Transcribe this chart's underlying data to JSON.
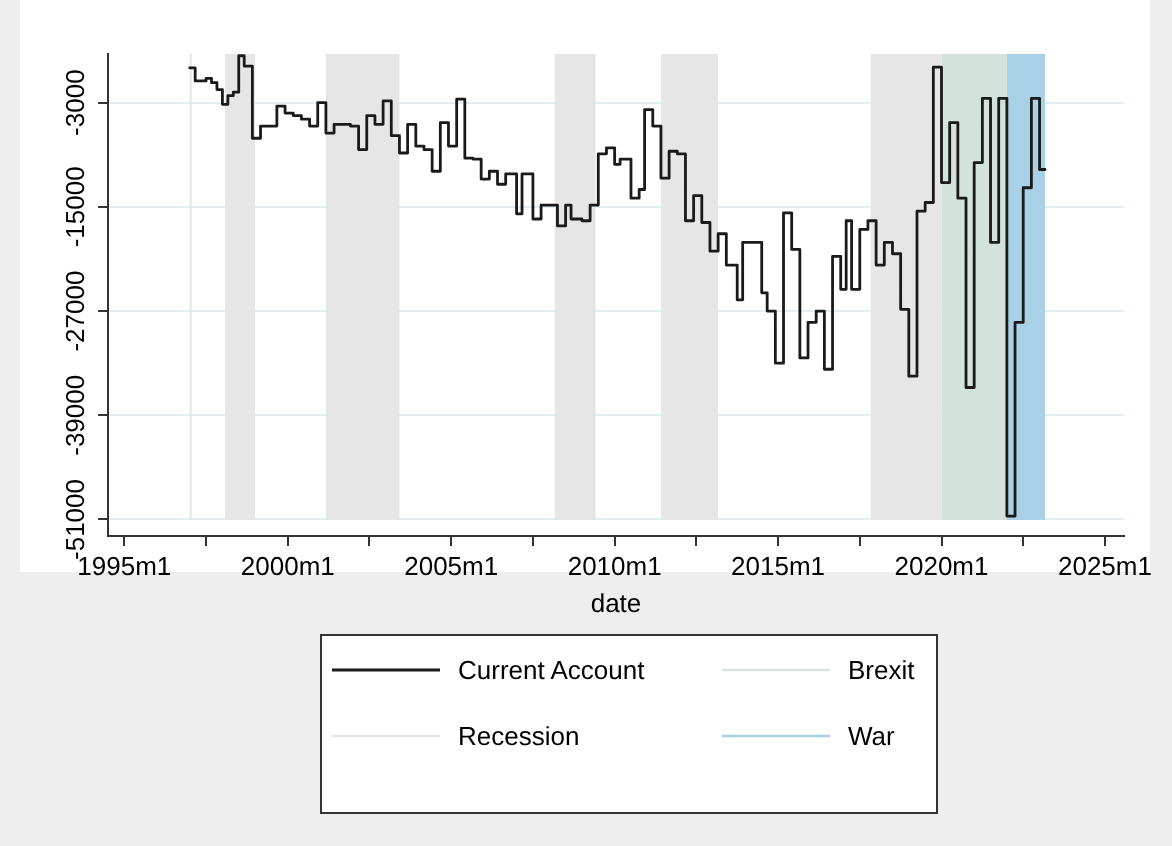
{
  "chart_data": {
    "type": "step",
    "xlabel": "date",
    "x": [
      "1997-01",
      "1997-03",
      "1997-07",
      "1997-09",
      "1997-11",
      "1998-01",
      "1998-03",
      "1998-05",
      "1998-07",
      "1998-09",
      "1998-12",
      "1999-03",
      "1999-09",
      "1999-12",
      "2000-03",
      "2000-06",
      "2000-09",
      "2000-12",
      "2001-03",
      "2001-06",
      "2001-12",
      "2002-03",
      "2002-06",
      "2002-09",
      "2002-12",
      "2003-03",
      "2003-06",
      "2003-09",
      "2003-12",
      "2004-03",
      "2004-06",
      "2004-09",
      "2004-12",
      "2005-03",
      "2005-06",
      "2005-09",
      "2005-12",
      "2006-03",
      "2006-06",
      "2006-09",
      "2007-01",
      "2007-03",
      "2007-07",
      "2007-10",
      "2008-04",
      "2008-07",
      "2008-09",
      "2009-01",
      "2009-04",
      "2009-07",
      "2009-10",
      "2010-01",
      "2010-03",
      "2010-07",
      "2010-10",
      "2010-12",
      "2011-03",
      "2011-06",
      "2011-09",
      "2011-12",
      "2012-03",
      "2012-06",
      "2012-09",
      "2012-12",
      "2013-03",
      "2013-06",
      "2013-10",
      "2013-12",
      "2014-07",
      "2014-09",
      "2014-12",
      "2015-03",
      "2015-06",
      "2015-09",
      "2015-12",
      "2016-03",
      "2016-06",
      "2016-09",
      "2016-12",
      "2017-02",
      "2017-04",
      "2017-07",
      "2017-10",
      "2018-01",
      "2018-04",
      "2018-07",
      "2018-10",
      "2019-01",
      "2019-04",
      "2019-07",
      "2019-10",
      "2020-01",
      "2020-04",
      "2020-07",
      "2020-10",
      "2021-01",
      "2021-04",
      "2021-07",
      "2021-10",
      "2022-01",
      "2022-04",
      "2022-07",
      "2022-10",
      "2023-01",
      "2023-03"
    ],
    "series": [
      {
        "name": "Current Account",
        "color": "#1a1a1a",
        "values": [
          1000,
          -500,
          -200,
          -700,
          -1500,
          -3200,
          -2200,
          -1800,
          2400,
          1200,
          -7100,
          -5700,
          -3400,
          -4200,
          -4500,
          -4900,
          -5700,
          -3000,
          -6500,
          -5500,
          -5700,
          -8400,
          -4500,
          -5500,
          -2800,
          -6800,
          -8800,
          -5500,
          -8000,
          -8400,
          -10900,
          -5300,
          -8000,
          -2600,
          -9400,
          -9500,
          -11800,
          -10900,
          -12400,
          -11200,
          -15800,
          -11200,
          -16400,
          -14800,
          -17200,
          -14800,
          -16400,
          -16600,
          -14800,
          -8900,
          -8200,
          -10100,
          -9500,
          -14000,
          -13000,
          -3800,
          -5700,
          -11700,
          -8600,
          -8900,
          -16600,
          -13700,
          -16800,
          -20100,
          -18100,
          -21700,
          -25700,
          -19100,
          -24900,
          -27000,
          -33000,
          -15700,
          -19900,
          -32400,
          -28300,
          -27000,
          -33700,
          -20700,
          -24500,
          -16600,
          -24500,
          -17600,
          -16600,
          -21700,
          -19100,
          -20400,
          -26800,
          -34500,
          -15500,
          -14500,
          1100,
          -12200,
          -5300,
          -14000,
          -35800,
          -9900,
          -2500,
          -19100,
          -2500,
          -50600,
          -28300,
          -12800,
          -2500,
          -10700,
          -10700
        ]
      }
    ],
    "xlim": [
      "1994-07",
      "2025-08"
    ],
    "xticks": [
      {
        "value": "1995-01",
        "label": "1995m1"
      },
      {
        "value": "1997-07",
        "label": null
      },
      {
        "value": "2000-01",
        "label": "2000m1"
      },
      {
        "value": "2002-07",
        "label": null
      },
      {
        "value": "2005-01",
        "label": "2005m1"
      },
      {
        "value": "2007-07",
        "label": null
      },
      {
        "value": "2010-01",
        "label": "2010m1"
      },
      {
        "value": "2012-07",
        "label": null
      },
      {
        "value": "2015-01",
        "label": "2015m1"
      },
      {
        "value": "2017-07",
        "label": null
      },
      {
        "value": "2020-01",
        "label": "2020m1"
      },
      {
        "value": "2022-07",
        "label": null
      },
      {
        "value": "2025-01",
        "label": "2025m1"
      }
    ],
    "ylim": [
      -52900,
      2600
    ],
    "yticks": [
      -51000,
      -39000,
      -27000,
      -15000,
      -3000
    ],
    "grid": "y",
    "legend": "bottom",
    "bands": [
      {
        "axis": "x",
        "from": "2020-01",
        "to": "2022-01",
        "label": "Brexit",
        "color": "#d3e2da"
      },
      {
        "axis": "x",
        "from": "1997-01",
        "to": "1997-01",
        "label": "Recession",
        "color": "#e6e6e6"
      },
      {
        "axis": "x",
        "from": "1998-02",
        "to": "1999-01",
        "color": "#e6e6e6"
      },
      {
        "axis": "x",
        "from": "2001-03",
        "to": "2003-06",
        "color": "#e6e6e6"
      },
      {
        "axis": "x",
        "from": "2008-03",
        "to": "2009-06",
        "color": "#e6e6e6"
      },
      {
        "axis": "x",
        "from": "2011-06",
        "to": "2013-03",
        "color": "#e6e6e6"
      },
      {
        "axis": "x",
        "from": "2017-11",
        "to": "2020-01",
        "color": "#e6e6e6"
      },
      {
        "axis": "x",
        "from": "2022-01",
        "to": "2023-03",
        "label": "War",
        "color": "#a8d0e6"
      }
    ]
  }
}
